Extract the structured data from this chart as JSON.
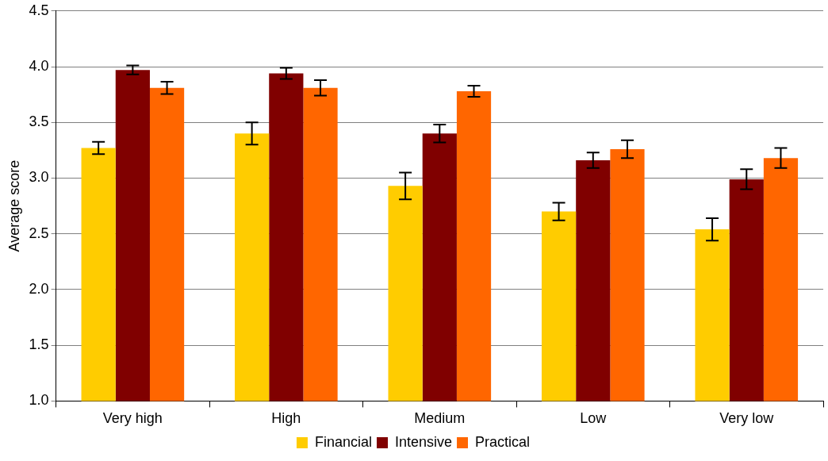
{
  "chart_data": {
    "type": "bar",
    "ylabel": "Average score",
    "categories": [
      "Very high",
      "High",
      "Medium",
      "Low",
      "Very low"
    ],
    "series": [
      {
        "name": "Financial",
        "color": "#ffcc00",
        "values": [
          3.27,
          3.4,
          2.93,
          2.7,
          2.54
        ],
        "errors": [
          0.055,
          0.1,
          0.12,
          0.08,
          0.1
        ]
      },
      {
        "name": "Intensive",
        "color": "#800000",
        "values": [
          3.97,
          3.94,
          3.4,
          3.16,
          2.99
        ],
        "errors": [
          0.04,
          0.05,
          0.08,
          0.07,
          0.09
        ]
      },
      {
        "name": "Practical",
        "color": "#ff6600",
        "values": [
          3.81,
          3.81,
          3.78,
          3.26,
          3.18
        ],
        "errors": [
          0.055,
          0.07,
          0.05,
          0.08,
          0.09
        ]
      }
    ],
    "ylim": [
      1.0,
      4.5
    ],
    "yticks": [
      {
        "value": 1,
        "label": "1.0"
      },
      {
        "value": 1.5,
        "label": "1.5"
      },
      {
        "value": 2,
        "label": "2.0"
      },
      {
        "value": 2.5,
        "label": "2.5"
      },
      {
        "value": 3,
        "label": "3.0"
      },
      {
        "value": 3.5,
        "label": "3.5"
      },
      {
        "value": 4,
        "label": "4.0"
      },
      {
        "value": 4.5,
        "label": "4.5"
      }
    ],
    "grid": "y",
    "legend": "bottom"
  }
}
